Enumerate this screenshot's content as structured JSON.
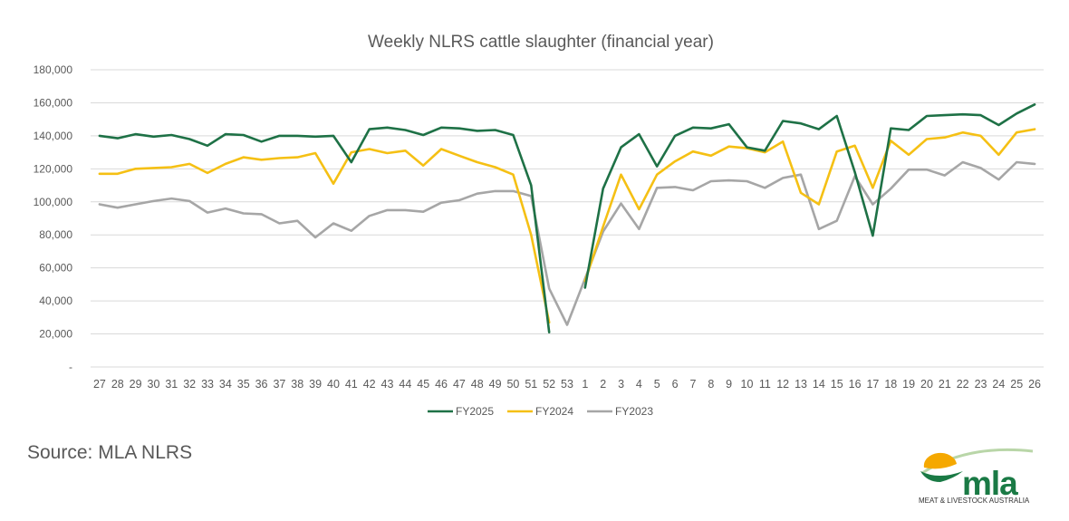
{
  "chart_data": {
    "type": "line",
    "title": "Weekly NLRS cattle slaughter (financial year)",
    "xlabel": "",
    "ylabel": "",
    "ylim": [
      0,
      180000
    ],
    "yticks": [
      0,
      20000,
      40000,
      60000,
      80000,
      100000,
      120000,
      140000,
      160000,
      180000
    ],
    "ytick_labels": [
      "-",
      "20,000",
      "40,000",
      "60,000",
      "80,000",
      "100,000",
      "120,000",
      "140,000",
      "160,000",
      "180,000"
    ],
    "categories": [
      "27",
      "28",
      "29",
      "30",
      "31",
      "32",
      "33",
      "34",
      "35",
      "36",
      "37",
      "38",
      "39",
      "40",
      "41",
      "42",
      "43",
      "44",
      "45",
      "46",
      "47",
      "48",
      "49",
      "50",
      "51",
      "52",
      "53",
      "1",
      "2",
      "3",
      "4",
      "5",
      "6",
      "7",
      "8",
      "9",
      "10",
      "11",
      "12",
      "13",
      "14",
      "15",
      "16",
      "17",
      "18",
      "19",
      "20",
      "21",
      "22",
      "23",
      "24",
      "25",
      "26"
    ],
    "grid": true,
    "legend_position": "bottom",
    "series": [
      {
        "name": "FY2025",
        "color": "#1e7146",
        "values": [
          140000,
          138500,
          141000,
          139500,
          140500,
          138000,
          134000,
          141000,
          140500,
          136500,
          140000,
          140000,
          139500,
          140000,
          124000,
          144000,
          145000,
          143500,
          140500,
          145000,
          144500,
          143000,
          143500,
          140500,
          110000,
          21000,
          null,
          48000,
          108000,
          133000,
          141000,
          121500,
          140000,
          145000,
          144500,
          147000,
          133000,
          131000,
          149000,
          147500,
          144000,
          152000,
          118000,
          79500,
          144500,
          143500,
          152000,
          152500,
          153000,
          152500,
          146500,
          153500,
          159000
        ]
      },
      {
        "name": "FY2024",
        "color": "#f5c014",
        "values": [
          117000,
          117000,
          120000,
          120500,
          121000,
          123000,
          117500,
          123000,
          127000,
          125500,
          126500,
          127000,
          129500,
          111000,
          130000,
          132000,
          129500,
          131000,
          122000,
          132000,
          128000,
          124000,
          121000,
          116500,
          80000,
          27000,
          null,
          52000,
          85000,
          116500,
          95500,
          116500,
          124500,
          130500,
          128000,
          133500,
          132500,
          130000,
          136500,
          105500,
          98500,
          130500,
          134000,
          108500,
          137000,
          128500,
          138000,
          139000,
          142000,
          140000,
          128500,
          142000,
          144000
        ]
      },
      {
        "name": "FY2023",
        "color": "#a6a6a6",
        "values": [
          98500,
          96500,
          98500,
          100500,
          102000,
          100500,
          93500,
          96000,
          93000,
          92500,
          87000,
          88500,
          78500,
          87000,
          82500,
          91500,
          95000,
          95000,
          94000,
          99500,
          101000,
          105000,
          106500,
          106500,
          103500,
          47500,
          25500,
          53500,
          82000,
          99000,
          83500,
          108500,
          109000,
          107000,
          112500,
          113000,
          112500,
          108500,
          114500,
          116500,
          83500,
          88500,
          115500,
          98500,
          108000,
          119500,
          119500,
          116000,
          124000,
          120500,
          113500,
          124000,
          123000
        ]
      }
    ]
  },
  "footer": {
    "source": "Source: MLA NLRS",
    "logo_text": "mla",
    "logo_subtitle": "MEAT & LIVESTOCK AUSTRALIA"
  }
}
